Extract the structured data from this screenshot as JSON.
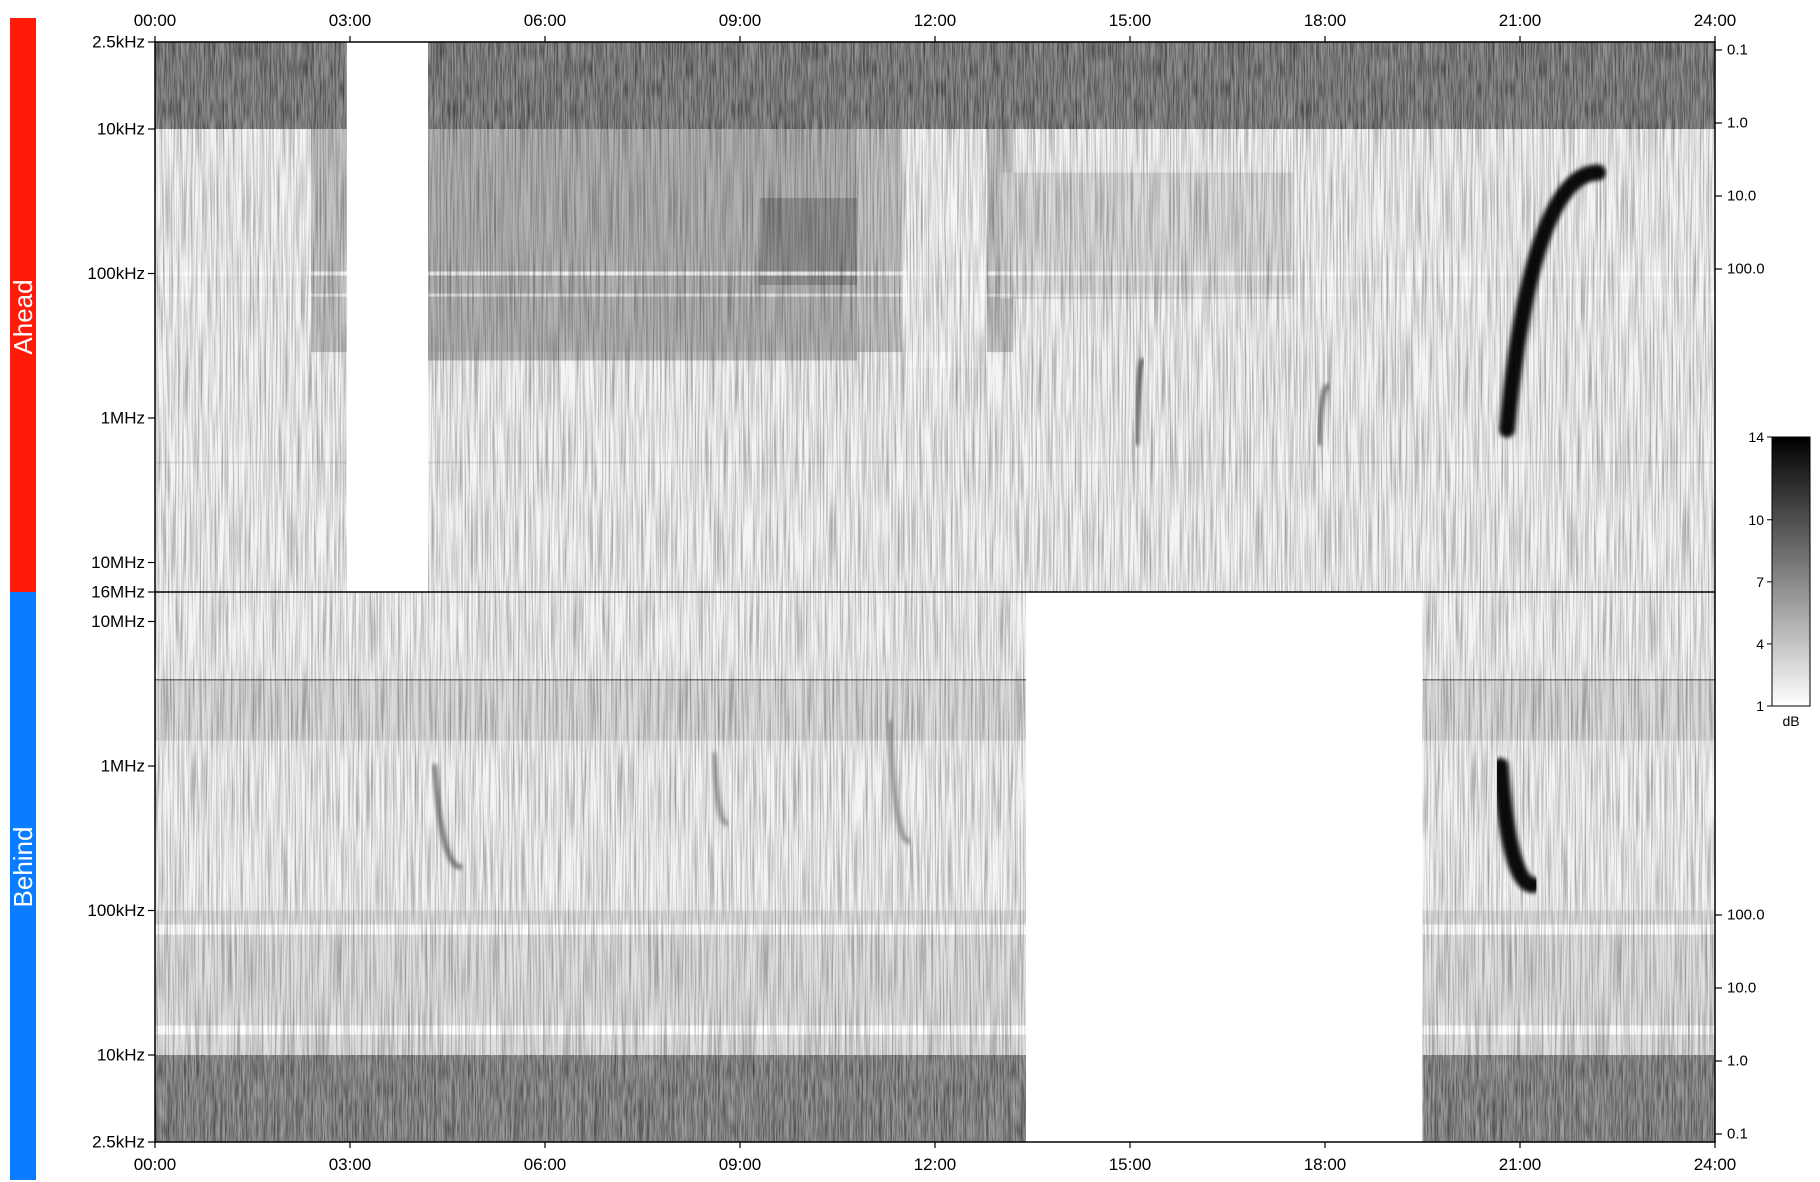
{
  "chart_data": {
    "type": "heatmap",
    "time_axis": {
      "tick_labels": [
        "00:00",
        "03:00",
        "06:00",
        "09:00",
        "12:00",
        "15:00",
        "18:00",
        "21:00",
        "24:00"
      ],
      "range_hours": [
        0,
        24
      ]
    },
    "colorbar": {
      "unit": "dB",
      "tick_labels": [
        "14",
        "10",
        "7",
        "4",
        "1"
      ],
      "range": [
        1,
        14
      ],
      "colors": [
        "#ffffff",
        "#000000"
      ]
    },
    "panels": [
      {
        "name": "Ahead",
        "color": "#ff1a0a",
        "freq_tick_labels": [
          "2.5kHz",
          "10kHz",
          "100kHz",
          "1MHz",
          "10MHz",
          "16MHz"
        ],
        "freq_ticks_hz": [
          2500,
          10000,
          100000,
          1000000,
          10000000,
          16000000
        ],
        "freq_direction": "increasing-downward",
        "right_tick_labels": [
          "0.1",
          "1.0",
          "10.0",
          "100.0"
        ],
        "data_gaps_hours": [
          [
            2.95,
            4.2
          ]
        ],
        "burst_features": [
          {
            "kind": "strong-type-III",
            "start_hour": 20.8,
            "start_hz": 1200000,
            "end_hour": 22.2,
            "end_hz": 20000,
            "intensity_db": 14
          },
          {
            "kind": "type-III",
            "start_hour": 15.1,
            "start_hz": 1500000,
            "end_hour": 15.2,
            "end_hz": 400000,
            "intensity_db": 11
          },
          {
            "kind": "type-III",
            "start_hour": 17.9,
            "start_hz": 1500000,
            "end_hour": 18.05,
            "end_hz": 600000,
            "intensity_db": 10
          }
        ]
      },
      {
        "name": "Behind",
        "color": "#0a7cff",
        "freq_tick_labels": [
          "10MHz",
          "1MHz",
          "100kHz",
          "10kHz",
          "2.5kHz"
        ],
        "freq_ticks_hz": [
          10000000,
          1000000,
          100000,
          10000,
          2500
        ],
        "freq_direction": "decreasing-downward",
        "right_tick_labels": [
          "100.0",
          "10.0",
          "1.0",
          "0.1"
        ],
        "data_gaps_hours": [
          [
            13.4,
            19.5
          ]
        ],
        "burst_features": [
          {
            "kind": "strong-type-III",
            "start_hour": 20.7,
            "start_hz": 1000000,
            "end_hour": 21.2,
            "end_hz": 150000,
            "intensity_db": 14
          },
          {
            "kind": "type-III",
            "start_hour": 4.3,
            "start_hz": 1000000,
            "end_hour": 4.7,
            "end_hz": 200000,
            "intensity_db": 10
          },
          {
            "kind": "type-III",
            "start_hour": 8.6,
            "start_hz": 1200000,
            "end_hour": 8.8,
            "end_hz": 400000,
            "intensity_db": 8
          },
          {
            "kind": "type-III",
            "start_hour": 11.3,
            "start_hz": 2000000,
            "end_hour": 11.6,
            "end_hz": 300000,
            "intensity_db": 8
          }
        ]
      }
    ]
  }
}
